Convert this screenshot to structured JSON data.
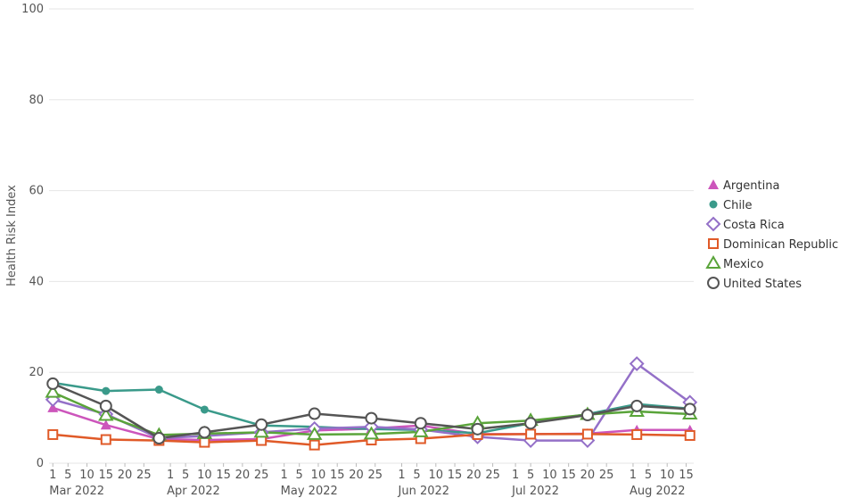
{
  "chart_data": {
    "type": "line",
    "ylabel": "Health Risk Index",
    "xlabel": "",
    "title": "",
    "ylim": [
      0,
      100
    ],
    "yticks": [
      0,
      20,
      40,
      60,
      80,
      100
    ],
    "xlim": [
      "2022-02-28",
      "2022-08-17"
    ],
    "x_day_ticks": [
      {
        "date": "2022-03-01",
        "label": "1"
      },
      {
        "date": "2022-03-05",
        "label": "5"
      },
      {
        "date": "2022-03-10",
        "label": "10"
      },
      {
        "date": "2022-03-15",
        "label": "15"
      },
      {
        "date": "2022-03-20",
        "label": "20"
      },
      {
        "date": "2022-03-25",
        "label": "25"
      },
      {
        "date": "2022-04-01",
        "label": "1"
      },
      {
        "date": "2022-04-05",
        "label": "5"
      },
      {
        "date": "2022-04-10",
        "label": "10"
      },
      {
        "date": "2022-04-15",
        "label": "15"
      },
      {
        "date": "2022-04-20",
        "label": "20"
      },
      {
        "date": "2022-04-25",
        "label": "25"
      },
      {
        "date": "2022-05-01",
        "label": "1"
      },
      {
        "date": "2022-05-05",
        "label": "5"
      },
      {
        "date": "2022-05-10",
        "label": "10"
      },
      {
        "date": "2022-05-15",
        "label": "15"
      },
      {
        "date": "2022-05-20",
        "label": "20"
      },
      {
        "date": "2022-05-25",
        "label": "25"
      },
      {
        "date": "2022-06-01",
        "label": "1"
      },
      {
        "date": "2022-06-05",
        "label": "5"
      },
      {
        "date": "2022-06-10",
        "label": "10"
      },
      {
        "date": "2022-06-15",
        "label": "15"
      },
      {
        "date": "2022-06-20",
        "label": "20"
      },
      {
        "date": "2022-06-25",
        "label": "25"
      },
      {
        "date": "2022-07-01",
        "label": "1"
      },
      {
        "date": "2022-07-05",
        "label": "5"
      },
      {
        "date": "2022-07-10",
        "label": "10"
      },
      {
        "date": "2022-07-15",
        "label": "15"
      },
      {
        "date": "2022-07-20",
        "label": "20"
      },
      {
        "date": "2022-07-25",
        "label": "25"
      },
      {
        "date": "2022-08-01",
        "label": "1"
      },
      {
        "date": "2022-08-05",
        "label": "5"
      },
      {
        "date": "2022-08-10",
        "label": "10"
      },
      {
        "date": "2022-08-15",
        "label": "15"
      }
    ],
    "x_month_labels": [
      {
        "date": "2022-03-01",
        "label": "Mar 2022"
      },
      {
        "date": "2022-04-01",
        "label": "Apr 2022"
      },
      {
        "date": "2022-05-01",
        "label": "May 2022"
      },
      {
        "date": "2022-06-01",
        "label": "Jun 2022"
      },
      {
        "date": "2022-07-01",
        "label": "Jul 2022"
      },
      {
        "date": "2022-08-01",
        "label": "Aug 2022"
      }
    ],
    "legend_position": "right",
    "series": [
      {
        "name": "Argentina",
        "color": "#cc55bb",
        "marker": "triangle",
        "points": [
          [
            "2022-03-01",
            12.2
          ],
          [
            "2022-03-15",
            8.4
          ],
          [
            "2022-03-29",
            5.3
          ],
          [
            "2022-04-10",
            5.1
          ],
          [
            "2022-04-25",
            5.3
          ],
          [
            "2022-05-09",
            7.2
          ],
          [
            "2022-05-24",
            7.6
          ],
          [
            "2022-06-06",
            8.3
          ],
          [
            "2022-06-21",
            6.4
          ],
          [
            "2022-07-05",
            6.4
          ],
          [
            "2022-07-20",
            6.5
          ],
          [
            "2022-08-02",
            7.3
          ],
          [
            "2022-08-16",
            7.3
          ]
        ]
      },
      {
        "name": "Chile",
        "color": "#3a9a8a",
        "marker": "dot",
        "points": [
          [
            "2022-03-01",
            17.7
          ],
          [
            "2022-03-15",
            15.9
          ],
          [
            "2022-03-29",
            16.2
          ],
          [
            "2022-04-10",
            11.8
          ],
          [
            "2022-04-25",
            8.3
          ],
          [
            "2022-05-09",
            8.0
          ],
          [
            "2022-05-24",
            7.5
          ],
          [
            "2022-06-06",
            7.3
          ],
          [
            "2022-06-21",
            6.6
          ],
          [
            "2022-07-05",
            8.8
          ],
          [
            "2022-07-20",
            10.8
          ],
          [
            "2022-08-02",
            13.0
          ],
          [
            "2022-08-16",
            12.0
          ]
        ]
      },
      {
        "name": "Costa Rica",
        "color": "#9470c8",
        "marker": "diamond",
        "points": [
          [
            "2022-03-01",
            14.0
          ],
          [
            "2022-03-15",
            10.8
          ],
          [
            "2022-03-29",
            5.5
          ],
          [
            "2022-04-10",
            6.0
          ],
          [
            "2022-04-25",
            6.8
          ],
          [
            "2022-05-09",
            7.6
          ],
          [
            "2022-05-24",
            8.0
          ],
          [
            "2022-06-06",
            7.4
          ],
          [
            "2022-06-21",
            5.8
          ],
          [
            "2022-07-05",
            5.0
          ],
          [
            "2022-07-20",
            5.0
          ],
          [
            "2022-08-02",
            21.9
          ],
          [
            "2022-08-16",
            13.4
          ]
        ]
      },
      {
        "name": "Dominican Republic",
        "color": "#e05a28",
        "marker": "square",
        "points": [
          [
            "2022-03-01",
            6.3
          ],
          [
            "2022-03-15",
            5.2
          ],
          [
            "2022-03-29",
            5.0
          ],
          [
            "2022-04-10",
            4.6
          ],
          [
            "2022-04-25",
            5.0
          ],
          [
            "2022-05-09",
            4.0
          ],
          [
            "2022-05-24",
            5.1
          ],
          [
            "2022-06-06",
            5.4
          ],
          [
            "2022-06-21",
            6.3
          ],
          [
            "2022-07-05",
            6.4
          ],
          [
            "2022-07-20",
            6.4
          ],
          [
            "2022-08-02",
            6.3
          ],
          [
            "2022-08-16",
            6.1
          ]
        ]
      },
      {
        "name": "Mexico",
        "color": "#5aa43a",
        "marker": "triangle-open",
        "points": [
          [
            "2022-03-01",
            15.6
          ],
          [
            "2022-03-15",
            10.5
          ],
          [
            "2022-03-29",
            6.2
          ],
          [
            "2022-04-10",
            6.5
          ],
          [
            "2022-04-25",
            6.8
          ],
          [
            "2022-05-09",
            6.3
          ],
          [
            "2022-05-24",
            6.4
          ],
          [
            "2022-06-06",
            6.9
          ],
          [
            "2022-06-21",
            8.8
          ],
          [
            "2022-07-05",
            9.4
          ],
          [
            "2022-07-20",
            10.7
          ],
          [
            "2022-08-02",
            11.4
          ],
          [
            "2022-08-16",
            10.8
          ]
        ]
      },
      {
        "name": "United States",
        "color": "#555555",
        "marker": "circle-open",
        "points": [
          [
            "2022-03-01",
            17.5
          ],
          [
            "2022-03-15",
            12.6
          ],
          [
            "2022-03-29",
            5.5
          ],
          [
            "2022-04-10",
            6.8
          ],
          [
            "2022-04-25",
            8.5
          ],
          [
            "2022-05-09",
            10.9
          ],
          [
            "2022-05-24",
            9.9
          ],
          [
            "2022-06-06",
            8.8
          ],
          [
            "2022-06-21",
            7.5
          ],
          [
            "2022-07-05",
            8.8
          ],
          [
            "2022-07-20",
            10.6
          ],
          [
            "2022-08-02",
            12.6
          ],
          [
            "2022-08-16",
            11.9
          ]
        ]
      }
    ]
  }
}
